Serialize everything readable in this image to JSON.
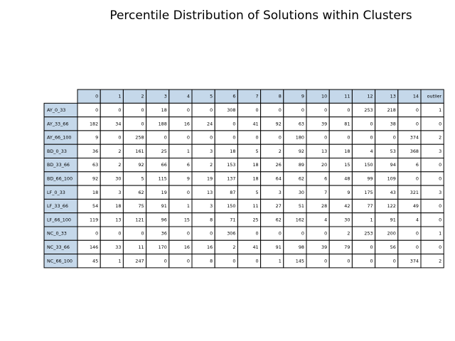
{
  "colors": {
    "header_bg": "#c5d8ea",
    "cell_bg": "#ffffff",
    "border": "#000000",
    "text": "#000000"
  },
  "chart_data": {
    "type": "table",
    "title": "Percentile Distribution of Solutions within Clusters",
    "columns": [
      "0",
      "1",
      "2",
      "3",
      "4",
      "5",
      "6",
      "7",
      "8",
      "9",
      "10",
      "11",
      "12",
      "13",
      "14",
      "outlier"
    ],
    "rows": [
      {
        "label": "AY_0_33",
        "values": [
          0,
          0,
          0,
          18,
          0,
          0,
          308,
          0,
          0,
          0,
          0,
          0,
          253,
          218,
          0,
          1
        ]
      },
      {
        "label": "AY_33_66",
        "values": [
          182,
          34,
          0,
          188,
          16,
          24,
          0,
          41,
          92,
          63,
          39,
          81,
          0,
          38,
          0,
          0
        ]
      },
      {
        "label": "AY_66_100",
        "values": [
          9,
          0,
          258,
          0,
          0,
          0,
          0,
          0,
          0,
          180,
          0,
          0,
          0,
          0,
          374,
          2
        ]
      },
      {
        "label": "BD_0_33",
        "values": [
          36,
          2,
          161,
          25,
          1,
          3,
          18,
          5,
          2,
          92,
          13,
          18,
          4,
          53,
          368,
          3
        ]
      },
      {
        "label": "BD_33_66",
        "values": [
          63,
          2,
          92,
          66,
          6,
          2,
          153,
          18,
          26,
          89,
          20,
          15,
          150,
          94,
          6,
          0
        ]
      },
      {
        "label": "BD_66_100",
        "values": [
          92,
          30,
          5,
          115,
          9,
          19,
          137,
          18,
          64,
          62,
          6,
          48,
          99,
          109,
          0,
          0
        ]
      },
      {
        "label": "LF_0_33",
        "values": [
          18,
          3,
          62,
          19,
          0,
          13,
          87,
          5,
          3,
          30,
          7,
          9,
          175,
          43,
          321,
          3
        ]
      },
      {
        "label": "LF_33_66",
        "values": [
          54,
          18,
          75,
          91,
          1,
          3,
          150,
          11,
          27,
          51,
          28,
          42,
          77,
          122,
          49,
          0
        ]
      },
      {
        "label": "LF_66_100",
        "values": [
          119,
          13,
          121,
          96,
          15,
          8,
          71,
          25,
          62,
          162,
          4,
          30,
          1,
          91,
          4,
          0
        ]
      },
      {
        "label": "NC_0_33",
        "values": [
          0,
          0,
          0,
          36,
          0,
          0,
          306,
          0,
          0,
          0,
          0,
          2,
          253,
          200,
          0,
          1
        ]
      },
      {
        "label": "NC_33_66",
        "values": [
          146,
          33,
          11,
          170,
          16,
          16,
          2,
          41,
          91,
          98,
          39,
          79,
          0,
          56,
          0,
          0
        ]
      },
      {
        "label": "NC_66_100",
        "values": [
          45,
          1,
          247,
          0,
          0,
          8,
          0,
          0,
          1,
          145,
          0,
          0,
          0,
          0,
          374,
          2
        ]
      }
    ]
  }
}
